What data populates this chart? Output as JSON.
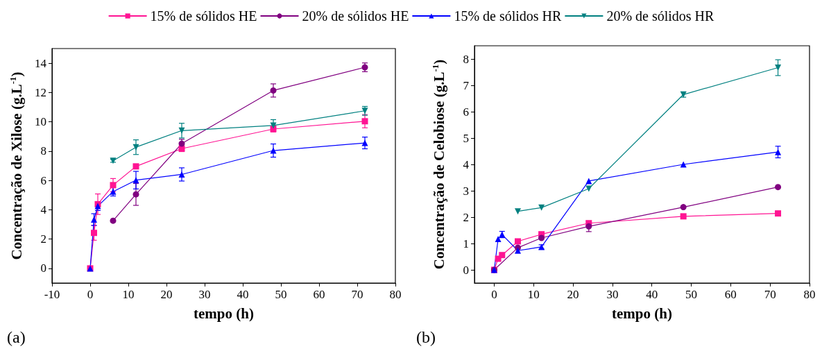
{
  "chart_data": [
    {
      "type": "line",
      "xlabel": "tempo (h)",
      "ylabel": "Concentração de Xilose (g.L$^{-1}$)",
      "annotations": [
        "(a)"
      ],
      "xlim": [
        -10,
        80
      ],
      "xticks": [
        -10,
        0,
        10,
        20,
        30,
        40,
        50,
        60,
        70,
        80
      ],
      "ylim": [
        -1,
        15
      ],
      "yticks": [
        0,
        2,
        4,
        6,
        8,
        10,
        12,
        14
      ],
      "grid": false,
      "legend": "top",
      "series": [
        {
          "name": "15% de sólidos HE",
          "color": "#ff1493",
          "marker": "square",
          "x": [
            0,
            1,
            2,
            6,
            12,
            24,
            48,
            72
          ],
          "values": [
            0,
            2.42,
            4.38,
            5.68,
            6.96,
            8.17,
            9.51,
            10.04
          ],
          "errors": [
            null,
            0.5,
            0.7,
            0.45,
            null,
            0.2,
            0.2,
            0.45
          ]
        },
        {
          "name": "20% de sólidos HE",
          "color": "#800080",
          "marker": "circle",
          "x": [
            6,
            12,
            24,
            48,
            72
          ],
          "values": [
            3.25,
            5.05,
            8.51,
            12.14,
            13.72
          ],
          "errors": [
            null,
            0.75,
            0.3,
            0.45,
            0.3
          ]
        },
        {
          "name": "15% de sólidos HR",
          "color": "#0000ff",
          "marker": "triangle",
          "x": [
            0,
            1,
            2,
            6,
            12,
            24,
            48,
            72
          ],
          "values": [
            0,
            3.33,
            4.25,
            5.24,
            6.02,
            6.41,
            8.04,
            8.56
          ],
          "errors": [
            null,
            0.4,
            0.3,
            0.3,
            0.6,
            0.45,
            0.45,
            0.4
          ]
        },
        {
          "name": "20% de sólidos HR",
          "color": "#008080",
          "marker": "triangle-down",
          "x": [
            6,
            12,
            24,
            48,
            72
          ],
          "values": [
            7.34,
            8.27,
            9.4,
            9.75,
            10.75
          ],
          "errors": [
            0.1,
            0.5,
            0.5,
            0.4,
            0.3
          ]
        }
      ]
    },
    {
      "type": "line",
      "xlabel": "tempo (h)",
      "ylabel": "Concentração de Celobiose (g.L$^{-1}$)",
      "annotations": [
        "(b)"
      ],
      "xlim": [
        -5,
        80
      ],
      "xticks": [
        0,
        10,
        20,
        30,
        40,
        50,
        60,
        70,
        80
      ],
      "ylim": [
        -0.5,
        8.5
      ],
      "yticks": [
        0,
        1,
        2,
        3,
        4,
        5,
        6,
        7,
        8
      ],
      "grid": false,
      "legend": false,
      "series": [
        {
          "color": "#ff1493",
          "marker": "square",
          "x": [
            0,
            1,
            2,
            6,
            12,
            24,
            48,
            72
          ],
          "values": [
            0,
            0.42,
            0.56,
            1.08,
            1.35,
            1.77,
            2.03,
            2.14
          ]
        },
        {
          "color": "#800080",
          "marker": "circle",
          "x": [
            0,
            6,
            12,
            24,
            48,
            72
          ],
          "values": [
            0,
            0.84,
            1.21,
            1.65,
            2.38,
            3.14
          ],
          "errors": [
            null,
            null,
            null,
            0.2,
            null,
            null
          ]
        },
        {
          "color": "#0000ff",
          "marker": "triangle",
          "x": [
            0,
            1,
            2,
            6,
            12,
            24,
            48,
            72
          ],
          "values": [
            0,
            1.17,
            1.34,
            0.73,
            0.87,
            3.37,
            4.0,
            4.47
          ],
          "errors": [
            null,
            null,
            0.12,
            null,
            0.08,
            null,
            null,
            0.22
          ]
        },
        {
          "color": "#008080",
          "marker": "triangle-down",
          "x": [
            6,
            12,
            24,
            48,
            72
          ],
          "values": [
            2.22,
            2.36,
            3.08,
            6.65,
            7.67
          ],
          "errors": [
            null,
            null,
            null,
            0.1,
            0.3
          ]
        }
      ]
    }
  ]
}
